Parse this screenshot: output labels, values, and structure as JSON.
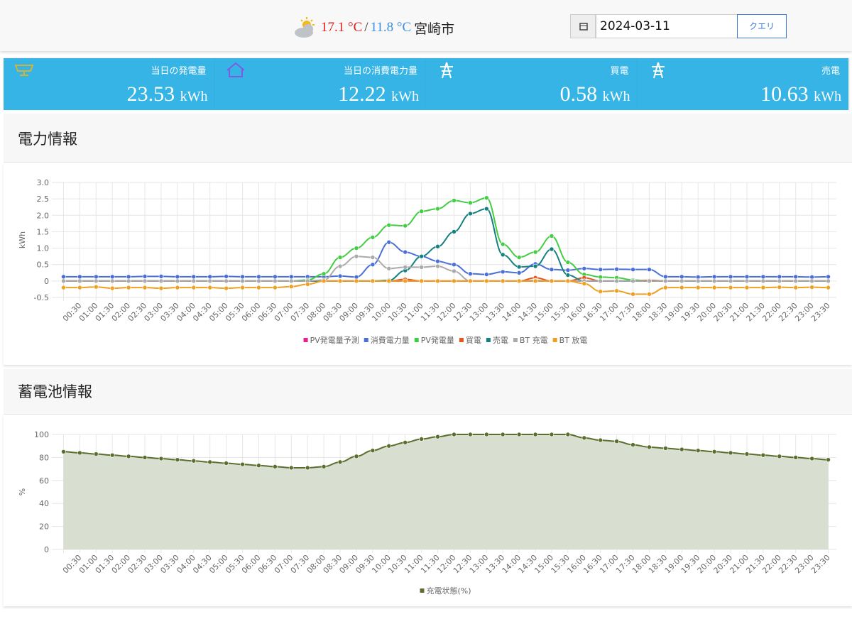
{
  "header": {
    "temp_high": "17.1 °C",
    "separator": "/",
    "temp_low": "11.8 °C",
    "city": "宮崎市",
    "date": "2024-03-11",
    "button": "クエリ"
  },
  "cards": [
    {
      "label": "当日の発電量",
      "value": "23.53",
      "unit": "kWh"
    },
    {
      "label": "当日の消費電力量",
      "value": "12.22",
      "unit": "kWh"
    },
    {
      "label": "買電",
      "value": "0.58",
      "unit": "kWh"
    },
    {
      "label": "売電",
      "value": "10.63",
      "unit": "kWh"
    }
  ],
  "chart_data": [
    {
      "type": "line",
      "title": "電力情報",
      "y_label": "kWh",
      "grid": true,
      "categories": [
        null,
        "00:30",
        "01:00",
        "01:30",
        "02:00",
        "02:30",
        "03:00",
        "03:30",
        "04:00",
        "04:30",
        "05:00",
        "05:30",
        "06:00",
        "06:30",
        "07:00",
        "07:30",
        "08:00",
        "08:30",
        "09:00",
        "09:30",
        "10:00",
        "10:30",
        "11:00",
        "11:30",
        "12:00",
        "12:30",
        "13:00",
        "13:30",
        "14:00",
        "14:30",
        "15:00",
        "15:30",
        "16:00",
        "16:30",
        "17:00",
        "17:30",
        "18:00",
        "18:30",
        "19:00",
        "19:30",
        "20:00",
        "20:30",
        "21:00",
        "21:30",
        "22:00",
        "22:30",
        "23:00",
        "23:30"
      ],
      "ylim": [
        -0.5,
        3
      ],
      "yticks": [
        -0.5,
        {
          "value": 0,
          "label": "0"
        },
        0.5,
        {
          "value": 1,
          "label": "1.0"
        },
        1.5,
        {
          "value": 2,
          "label": "2.0"
        },
        2.5,
        {
          "value": 3,
          "label": "3.0"
        }
      ],
      "series": [
        {
          "name": "PV発電量予測",
          "color": "#e91e8c",
          "values": [
            0,
            0,
            0,
            0,
            0,
            0,
            0,
            0,
            0,
            0,
            0,
            0,
            0,
            0,
            0,
            0,
            0,
            0,
            0,
            0,
            0,
            0,
            0,
            0,
            0,
            0,
            0,
            0,
            0,
            0,
            0,
            0,
            0,
            0,
            0,
            0,
            0,
            0,
            0,
            0,
            0,
            0,
            0,
            0,
            0,
            0,
            0,
            0
          ]
        },
        {
          "name": "消費電力量",
          "color": "#4a6fd8",
          "values": [
            0.13,
            0.13,
            0.13,
            0.13,
            0.13,
            0.14,
            0.14,
            0.13,
            0.13,
            0.13,
            0.14,
            0.13,
            0.13,
            0.13,
            0.13,
            0.13,
            0.13,
            0.15,
            0.12,
            0.5,
            1.18,
            0.88,
            0.75,
            0.6,
            0.5,
            0.22,
            0.2,
            0.28,
            0.25,
            0.52,
            0.35,
            0.33,
            0.38,
            0.35,
            0.36,
            0.35,
            0.35,
            0.13,
            0.13,
            0.12,
            0.13,
            0.13,
            0.13,
            0.13,
            0.13,
            0.13,
            0.12,
            0.13
          ]
        },
        {
          "name": "PV発電量",
          "color": "#44cc44",
          "values": [
            0,
            0,
            0,
            0,
            0,
            0,
            0,
            0,
            0,
            0,
            0,
            0,
            0,
            0,
            0,
            0.03,
            0.22,
            0.72,
            1.0,
            1.33,
            1.7,
            1.68,
            2.12,
            2.2,
            2.45,
            2.38,
            2.53,
            1.12,
            0.72,
            0.88,
            1.37,
            0.57,
            0.2,
            0.12,
            0.1,
            0.03,
            0,
            0,
            0,
            0,
            0,
            0,
            0,
            0,
            0,
            0,
            0,
            0
          ]
        },
        {
          "name": "買電",
          "color": "#e8541c",
          "values": [
            0,
            0,
            0,
            0,
            0,
            0,
            0,
            0,
            0,
            0,
            0,
            0,
            0,
            0,
            0,
            0,
            0,
            0,
            0,
            0,
            0,
            0.05,
            0,
            0,
            0,
            0,
            0,
            0,
            0,
            0.1,
            0,
            0,
            0.1,
            0,
            0,
            0,
            0.02,
            0,
            0,
            0,
            0,
            0,
            0,
            0,
            0,
            0,
            0,
            0
          ]
        },
        {
          "name": "売電",
          "color": "#158080",
          "values": [
            0,
            0,
            0,
            0,
            0,
            0,
            0,
            0,
            0,
            0,
            0,
            0,
            0,
            0,
            0,
            0,
            0,
            0,
            0,
            0,
            0.02,
            0.32,
            0.75,
            1.05,
            1.5,
            2.05,
            2.2,
            0.8,
            0.43,
            0.45,
            0.97,
            0.18,
            0,
            0,
            0,
            0,
            0,
            0,
            0,
            0,
            0,
            0,
            0,
            0,
            0,
            0,
            0,
            0
          ]
        },
        {
          "name": "BT 充電",
          "color": "#aaaaaa",
          "values": [
            0,
            0,
            0,
            0,
            0,
            0,
            0,
            0,
            0,
            0,
            0,
            0,
            0,
            0,
            0,
            0,
            0.03,
            0.45,
            0.75,
            0.72,
            0.38,
            0.42,
            0.42,
            0.45,
            0.3,
            0,
            0,
            0,
            0,
            0.02,
            0,
            0,
            0,
            0,
            0,
            0,
            0,
            0,
            0,
            0,
            0,
            0,
            0,
            0,
            0,
            0,
            0,
            0
          ]
        },
        {
          "name": "BT 放電",
          "color": "#f0a020",
          "values": [
            -0.2,
            -0.2,
            -0.18,
            -0.22,
            -0.2,
            -0.2,
            -0.22,
            -0.2,
            -0.2,
            -0.2,
            -0.22,
            -0.2,
            -0.2,
            -0.2,
            -0.17,
            -0.1,
            0,
            0,
            0,
            0,
            0,
            0,
            0,
            0,
            0,
            0,
            0,
            0,
            0,
            0,
            0,
            0,
            -0.08,
            -0.32,
            -0.3,
            -0.4,
            -0.4,
            -0.2,
            -0.2,
            -0.2,
            -0.2,
            -0.2,
            -0.2,
            -0.2,
            -0.19,
            -0.2,
            -0.19,
            -0.2
          ]
        }
      ]
    },
    {
      "type": "area",
      "title": "蓄電池情報",
      "y_label": "%",
      "grid": true,
      "categories": [
        null,
        "00:30",
        "01:00",
        "01:30",
        "02:00",
        "02:30",
        "03:00",
        "03:30",
        "04:00",
        "04:30",
        "05:00",
        "05:30",
        "06:00",
        "06:30",
        "07:00",
        "07:30",
        "08:00",
        "08:30",
        "09:00",
        "09:30",
        "10:00",
        "10:30",
        "11:00",
        "11:30",
        "12:00",
        "12:30",
        "13:00",
        "13:30",
        "14:00",
        "14:30",
        "15:00",
        "15:30",
        "16:00",
        "16:30",
        "17:00",
        "17:30",
        "18:00",
        "18:30",
        "19:00",
        "19:30",
        "20:00",
        "20:30",
        "21:00",
        "21:30",
        "22:00",
        "22:30",
        "23:00",
        "23:30"
      ],
      "ylim": [
        0,
        100
      ],
      "yticks": [
        0,
        20,
        40,
        60,
        80,
        100
      ],
      "series": [
        {
          "name": "充電状態(%)",
          "color": "#5b6e2e",
          "fill": "#d9dfd0",
          "values": [
            85,
            84,
            83,
            82,
            81,
            80,
            79,
            78,
            77,
            76,
            75,
            74,
            73,
            72,
            71,
            71,
            72,
            76,
            81,
            86,
            90,
            93,
            96,
            98,
            100,
            100,
            100,
            100,
            100,
            100,
            100,
            100,
            97,
            95,
            94,
            91,
            89,
            88,
            87,
            86,
            85,
            84,
            83,
            82,
            81,
            80,
            79,
            78
          ]
        }
      ]
    }
  ]
}
